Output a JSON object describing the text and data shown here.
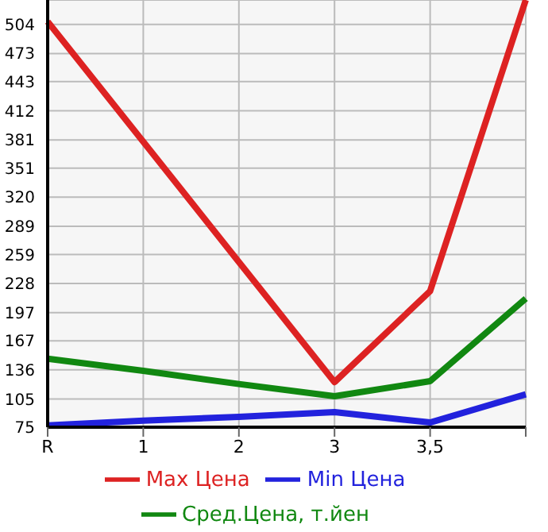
{
  "chart_data": {
    "type": "line",
    "categories": [
      "R",
      "1",
      "2",
      "3",
      "3,5",
      null
    ],
    "series": [
      {
        "name": "Max Цена",
        "color": "#dd2222",
        "values": [
          507,
          379,
          251,
          123,
          220,
          530
        ]
      },
      {
        "name": "Min Цена",
        "color": "#2222dd",
        "values": [
          77,
          82,
          86,
          91,
          80,
          110
        ]
      },
      {
        "name": "Сред.Цена, т.йен",
        "color": "#118811",
        "values": [
          148,
          135,
          121,
          108,
          124,
          212
        ]
      }
    ],
    "ylim": [
      75,
      530
    ],
    "yticks": [
      75,
      105,
      136,
      167,
      197,
      228,
      259,
      289,
      320,
      351,
      381,
      412,
      443,
      473,
      504
    ],
    "grid": true,
    "legend": "bottom",
    "marker": "none",
    "line_style": "solid"
  }
}
